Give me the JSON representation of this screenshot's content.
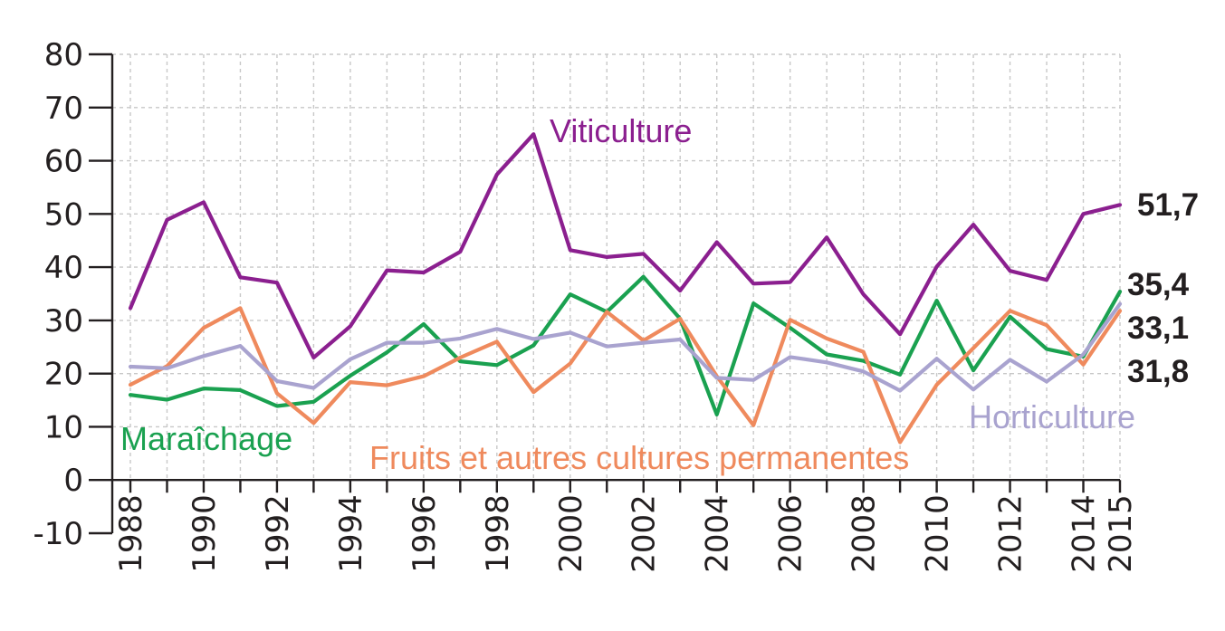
{
  "chart_data": {
    "type": "line",
    "title": "",
    "xlabel": "",
    "ylabel": "",
    "ylim": [
      -10,
      80
    ],
    "y_ticks": [
      "-10",
      "0",
      "10",
      "20",
      "30",
      "40",
      "50",
      "60",
      "70",
      "80"
    ],
    "x_tick_labels": [
      "1988",
      "1990",
      "1992",
      "1994",
      "1996",
      "1998",
      "2000",
      "2002",
      "2004",
      "2006",
      "2008",
      "2010",
      "2012",
      "2014",
      "2015"
    ],
    "grid": true,
    "x": [
      1988,
      1989,
      1990,
      1991,
      1992,
      1993,
      1994,
      1995,
      1996,
      1997,
      1998,
      1999,
      2000,
      2001,
      2002,
      2003,
      2004,
      2005,
      2006,
      2007,
      2008,
      2009,
      2010,
      2011,
      2012,
      2013,
      2014,
      2015
    ],
    "series": [
      {
        "name": "Viticulture",
        "color": "#8b1f8f",
        "values": [
          32.3,
          48.9,
          52.2,
          38.1,
          37.1,
          23.0,
          28.9,
          39.4,
          39.0,
          42.9,
          57.4,
          65.0,
          43.2,
          41.9,
          42.5,
          35.6,
          44.7,
          36.9,
          37.2,
          45.6,
          34.9,
          27.4,
          40.1,
          48.0,
          39.3,
          37.6,
          50.0,
          51.7
        ],
        "end_label": "51,7"
      },
      {
        "name": "Maraîchage",
        "color": "#1aa150",
        "values": [
          16.0,
          15.1,
          17.2,
          16.9,
          13.9,
          14.7,
          19.6,
          24.0,
          29.3,
          22.3,
          21.6,
          25.3,
          34.9,
          31.6,
          38.2,
          30.3,
          12.3,
          33.2,
          28.6,
          23.6,
          22.4,
          19.8,
          33.7,
          20.6,
          30.7,
          24.6,
          23.2,
          35.4
        ],
        "end_label": "35,4"
      },
      {
        "name": "Fruits et autres cultures permanentes",
        "color": "#ef8a5d",
        "values": [
          17.9,
          21.4,
          28.6,
          32.3,
          16.3,
          10.7,
          18.4,
          17.8,
          19.5,
          23.0,
          26.0,
          16.5,
          21.9,
          31.6,
          26.2,
          30.3,
          19.5,
          10.3,
          30.1,
          26.6,
          24.1,
          7.1,
          17.9,
          24.8,
          31.8,
          29.1,
          21.7,
          31.8
        ],
        "end_label": "31,8"
      },
      {
        "name": "Horticulture",
        "color": "#a9a3cf",
        "values": [
          21.3,
          21.0,
          23.3,
          25.2,
          18.6,
          17.3,
          22.7,
          25.8,
          25.8,
          26.6,
          28.4,
          26.5,
          27.7,
          25.1,
          25.8,
          26.4,
          19.2,
          18.8,
          23.1,
          22.1,
          20.4,
          16.8,
          22.8,
          17.0,
          22.6,
          18.5,
          23.6,
          33.1
        ],
        "end_label": "33,1"
      }
    ]
  }
}
